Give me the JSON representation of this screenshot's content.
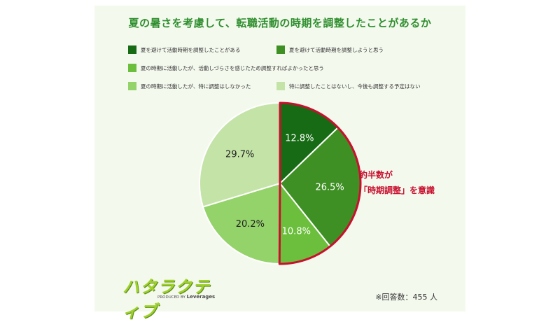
{
  "chart_data": {
    "type": "pie",
    "title": "夏の暑さを考慮して、転職活動の時期を調整したことがあるか",
    "categories": [
      "夏を避けて活動時期を調整したことがある",
      "夏を避けて活動時期を調整しようと思う",
      "夏の時期に活動したが、活動しづらさを感じたため調整すればよかったと思う",
      "夏の時期に活動したが、特に調整はしなかった",
      "特に調整したことはないし、今後も調整する予定はない"
    ],
    "values": [
      12.8,
      26.5,
      10.8,
      20.2,
      29.7
    ],
    "labels": [
      "12.8%",
      "26.5%",
      "10.8%",
      "20.2%",
      "29.7%"
    ],
    "colors": [
      "#176b14",
      "#3f9024",
      "#6bbf3c",
      "#94d26a",
      "#c3e3a7"
    ],
    "highlight_color": "#c8102e",
    "annotation": [
      "約半数が",
      "「時期調整」を意識"
    ],
    "legend_position": "top"
  },
  "note": "※回答数：455 人",
  "logo": {
    "name": "ハタラクティブ",
    "produced_by": "PRODUCED BY",
    "brand": "Leverages"
  }
}
